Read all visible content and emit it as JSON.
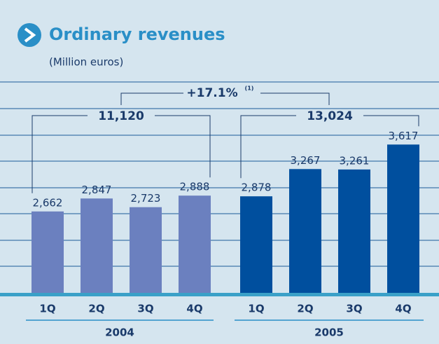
{
  "chart_data": {
    "type": "bar",
    "title": "Ordinary revenues",
    "subtitle": "(Million euros)",
    "categories": [
      "1Q",
      "2Q",
      "3Q",
      "4Q",
      "1Q",
      "2Q",
      "3Q",
      "4Q"
    ],
    "values": [
      2662,
      2847,
      2723,
      2888,
      2878,
      3267,
      3261,
      3617
    ],
    "value_labels": [
      "2,662",
      "2,847",
      "2,723",
      "2,888",
      "2,878",
      "3,267",
      "3,261",
      "3,617"
    ],
    "colors": [
      "#6b80bf",
      "#6b80bf",
      "#6b80bf",
      "#6b80bf",
      "#004f9e",
      "#004f9e",
      "#004f9e",
      "#004f9e"
    ],
    "group_labels": [
      "2004",
      "2005"
    ],
    "annotations": [
      "11,120",
      "13,024"
    ],
    "growth_label": "+17.1%",
    "footnote_mark": "(1)",
    "ylim": [
      1500,
      4000
    ]
  }
}
